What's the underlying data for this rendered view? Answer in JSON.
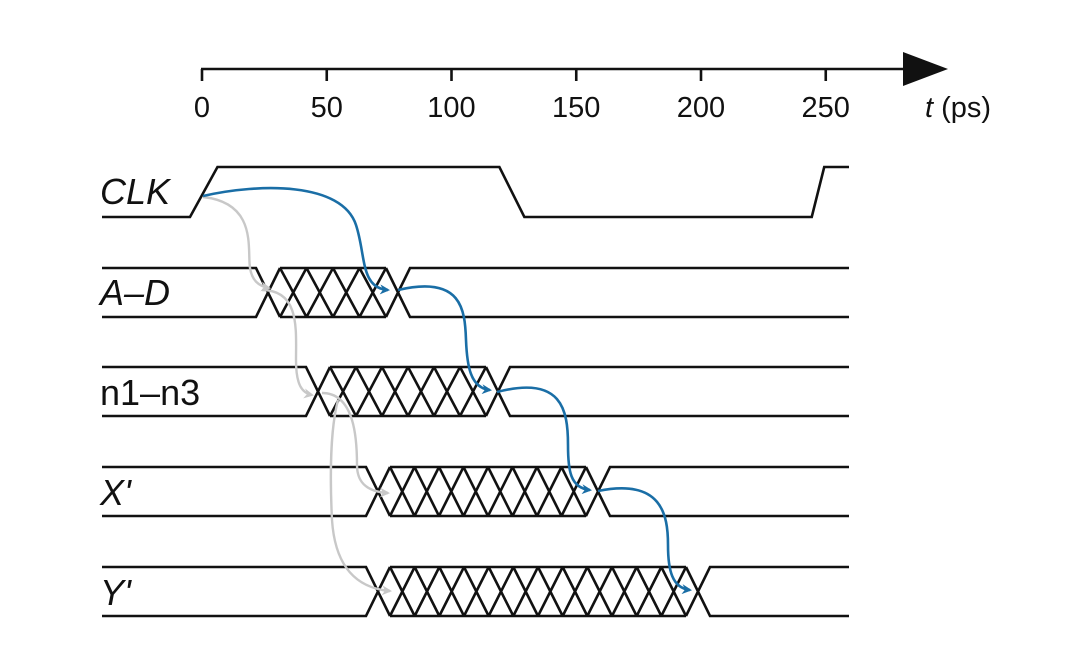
{
  "axis": {
    "unit_label_t": "t",
    "unit_label_rest": " (ps)",
    "ticks": [
      0,
      50,
      100,
      150,
      200,
      250
    ],
    "arrow_color": "#111111"
  },
  "signals": [
    {
      "id": "clk",
      "label": "CLK",
      "italic": true,
      "type": "clock",
      "rise1": [
        0,
        5
      ],
      "fall": [
        120,
        130
      ],
      "rise2": [
        250,
        255
      ]
    },
    {
      "id": "ad",
      "label": "A–D",
      "italic": true,
      "type": "bus",
      "unknown": [
        25,
        85
      ]
    },
    {
      "id": "n",
      "label": "n1–n3",
      "italic": false,
      "type": "bus",
      "unknown": [
        45,
        125
      ]
    },
    {
      "id": "x",
      "label": "X'",
      "italic": true,
      "type": "bus",
      "unknown": [
        75,
        165
      ]
    },
    {
      "id": "y",
      "label": "Y'",
      "italic": true,
      "type": "bus",
      "unknown": [
        75,
        205
      ]
    }
  ],
  "colors": {
    "critical_path": "#1a6ea6",
    "short_path": "#c8c8c8",
    "waveform": "#111111"
  }
}
